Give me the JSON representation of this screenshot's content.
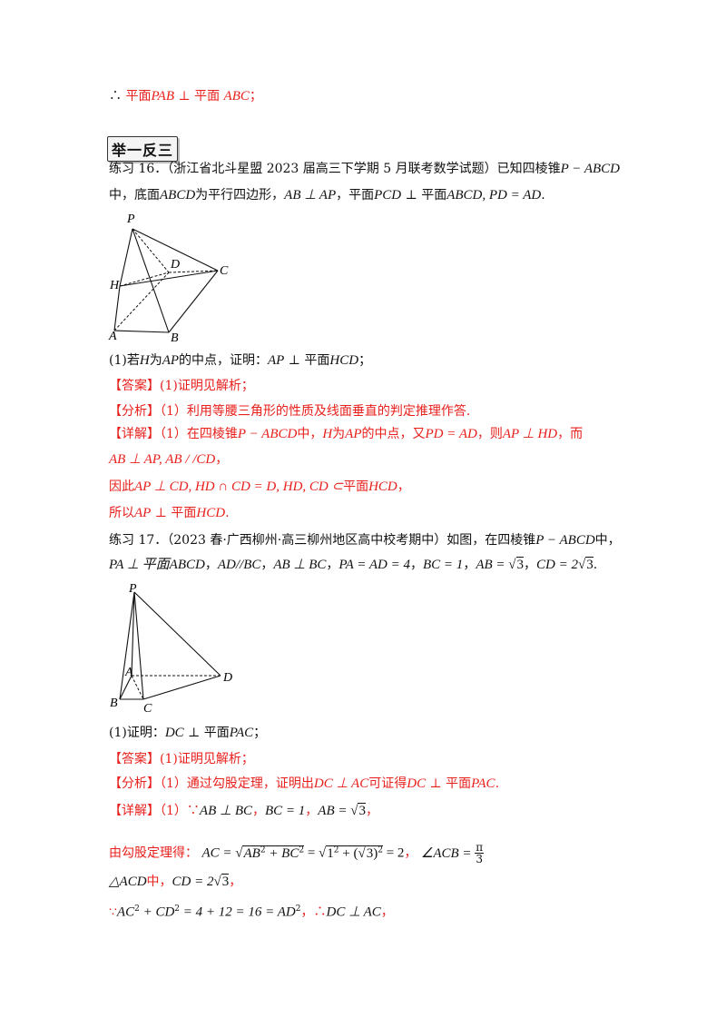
{
  "prev_conclusion": {
    "therefore": "∴",
    "a": "平面",
    "b": "PAB",
    "c": " ⊥ 平面 ",
    "d": "ABC",
    "e": "；"
  },
  "section_badge": "举一反三",
  "ex16": {
    "intro_1": "练习 16．（浙江省北斗星盟 2023 届高三下学期 5 月联考数学试题）已知四棱锥",
    "intro_pyr": "P − ABCD",
    "intro_2a": "中，底面",
    "intro_2b": "ABCD",
    "intro_2c": "为平行四边形，",
    "intro_2d": "AB ⊥ AP",
    "intro_2e": "，平面",
    "intro_2f": "PCD",
    "intro_2g": " ⊥ 平面",
    "intro_2h": "ABCD, PD = AD",
    "intro_2i": ".",
    "figure_labels": {
      "P": "P",
      "D": "D",
      "C": "C",
      "H": "H",
      "A": "A",
      "B": "B"
    },
    "q1_a": "(1)若",
    "q1_b": "H",
    "q1_c": "为",
    "q1_d": "AP",
    "q1_e": "的中点，证明：",
    "q1_f": "AP",
    "q1_g": " ⊥ 平面",
    "q1_h": "HCD",
    "q1_i": "；",
    "ans_tag": "【答案】",
    "ans_text": "(1)证明见解析；",
    "fx_tag": "【分析】",
    "fx_text": "（1）利用等腰三角形的性质及线面垂直的判定推理作答.",
    "xj_tag": "【详解】",
    "xj_1a": "（1）在四棱锥",
    "xj_1b": "P − ABCD",
    "xj_1c": "中，",
    "xj_1d": "H",
    "xj_1e": "为",
    "xj_1f": "AP",
    "xj_1g": "的中点，又",
    "xj_1h": "PD = AD",
    "xj_1i": "，则",
    "xj_1j": "AP ⊥ HD",
    "xj_1k": "，而",
    "xj_2a": "AB ⊥ AP, AB / /CD",
    "xj_2b": "，",
    "xj_3a": "因此",
    "xj_3b": "AP ⊥ CD, HD ∩ CD = D, HD, CD ⊂",
    "xj_3c": "平面",
    "xj_3d": "HCD",
    "xj_3e": "，",
    "xj_4a": "所以",
    "xj_4b": "AP",
    "xj_4c": " ⊥ 平面",
    "xj_4d": "HCD",
    "xj_4e": "."
  },
  "ex17": {
    "intro_1": "练习 17．（2023 春·广西柳州·高三柳州地区高中校考期中）如图，在四棱锥",
    "intro_pyr": "P − ABCD",
    "intro_1z": "中，",
    "intro_2a": "PA ⊥ 平面ABCD",
    "intro_2b": "，",
    "intro_2c": "AD//BC",
    "intro_2d": "，",
    "intro_2e": "AB ⊥ BC",
    "intro_2f": "，",
    "intro_2g": "PA = AD = 4",
    "intro_2h": "，",
    "intro_2i": "BC = 1",
    "intro_2j": "，",
    "intro_2k": "AB = ",
    "intro_2k_rad": "3",
    "intro_2l": "，",
    "intro_2m": "CD = 2",
    "intro_2m_rad": "3",
    "intro_2n": ".",
    "figure_labels": {
      "P": "P",
      "A": "A",
      "D": "D",
      "B": "B",
      "C": "C"
    },
    "q1_a": "(1)证明：",
    "q1_b": "DC",
    "q1_c": " ⊥ 平面",
    "q1_d": "PAC",
    "q1_e": "；",
    "ans_tag": "【答案】",
    "ans_text": "(1)证明见解析；",
    "fx_tag": "【分析】",
    "fx_a": "（1）通过勾股定理，证明出",
    "fx_b": "DC ⊥ AC",
    "fx_c": "可证得",
    "fx_d": "DC",
    "fx_e": " ⊥ 平面",
    "fx_f": "PAC",
    "fx_g": ".",
    "xj_tag": "【详解】",
    "xj_1a": "（1）∵",
    "xj_1b": "AB ⊥ BC",
    "xj_1c": "，",
    "xj_1d": "BC = 1",
    "xj_1e": "，",
    "xj_1f": "AB = ",
    "xj_1f_rad": "3",
    "xj_1g": "，",
    "xj_2a": "由勾股定理得：",
    "xj_2b": "AC = ",
    "xj_2c": "AB",
    "xj_2d": "2",
    "xj_2e": " + BC",
    "xj_2f": "2",
    "xj_2g": " = ",
    "xj_2h": "1",
    "xj_2i": "2",
    "xj_2j": " + (",
    "xj_2k": "3",
    "xj_2l": ")",
    "xj_2m": "2",
    "xj_2n": " = 2",
    "xj_2o": "，",
    "xj_2p": "∠ACB = ",
    "xj_2q": "π",
    "xj_2r": "3",
    "xj_3a": "△ACD",
    "xj_3b": "中，",
    "xj_3c": "CD = 2",
    "xj_3c_rad": "3",
    "xj_3d": "，",
    "xj_4a": "∵",
    "xj_4b": "AC",
    "xj_4c": "2",
    "xj_4d": " + CD",
    "xj_4e": "2",
    "xj_4f": " = 4 + 12 = 16 = AD",
    "xj_4g": "2",
    "xj_4h": "，",
    "xj_4i": "∴",
    "xj_4j": "DC ⊥ AC",
    "xj_4k": "，"
  }
}
